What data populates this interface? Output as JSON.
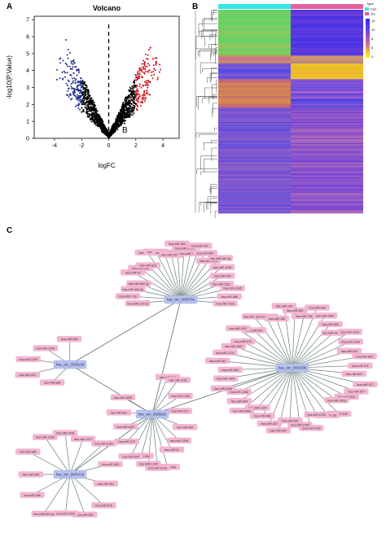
{
  "panel_labels": {
    "a": "A",
    "b": "B",
    "c": "C"
  },
  "chart_data": [
    {
      "type": "scatter",
      "title": "Volcano",
      "xlabel": "logFC",
      "ylabel": "-log10(P.Value)",
      "xlim": [
        -5.5,
        5.2
      ],
      "ylim": [
        0,
        7.2
      ],
      "xticks": [
        -4,
        -2,
        0,
        2,
        4
      ],
      "yticks": [
        0,
        1,
        2,
        3,
        4,
        5,
        6,
        7
      ],
      "threshold_lines": {
        "x": 0,
        "style": "dashed"
      },
      "annotation": "B",
      "series": [
        {
          "color": "#000000",
          "shape": "v-cloud",
          "x_range": [
            -2,
            2
          ]
        },
        {
          "color": "#1f2f8f",
          "shape": "v-cloud",
          "x_range": [
            -4.6,
            -2
          ]
        },
        {
          "color": "#d0101a",
          "shape": "v-cloud",
          "x_range": [
            2,
            4.6
          ]
        }
      ]
    },
    {
      "type": "heatmap",
      "legend": {
        "title": "Type",
        "labels": [
          "Con",
          "Tre"
        ],
        "scale_labels": [
          "12",
          "10",
          "8",
          "6",
          "4"
        ],
        "colors": [
          "#33e6e6",
          "#e55f9d"
        ]
      },
      "column_groups": [
        {
          "color": "#33e6e6"
        },
        {
          "color": "#e55f9d"
        }
      ],
      "colorscale": [
        "#ffff00",
        "#e8a030",
        "#c05ad0",
        "#5a3fdd",
        "#2a2df0"
      ]
    }
  ],
  "network": {
    "hubs": [
      {
        "id": "h1",
        "label": "hsa_circ_0002762"
      },
      {
        "id": "h2",
        "label": "hsa_circ_0005168"
      },
      {
        "id": "h3",
        "label": "hsa_circ_0001009"
      },
      {
        "id": "h4",
        "label": "hsa_circ_0005602"
      },
      {
        "id": "h5",
        "label": "hsa_circ_0001419"
      }
    ],
    "mirnas_h1": [
      "hsa-miR-143-3p",
      "hsa-miR-7-5p",
      "hsa-miR-454-3p",
      "hsa-miR-582-5p",
      "hsa-miR-93",
      "hsa-miR-556",
      "hsa-miR-623",
      "hsa-miR-320",
      "hsa-miR-370",
      "hsa-miR-337",
      "hsa-miR-767-5p",
      "hsa-miR-361",
      "hsa-miR-1208",
      "hsa-miR-338-5p",
      "hsa-miR-433",
      "hsa-miR-559",
      "hsa-miR-1303",
      "hsa-miR-590-3p",
      "hsa-miR-1238",
      "hsa-miR-499",
      "hsa-miR-1261",
      "hsa-miR-1185",
      "hsa-miR-888",
      "hsa-miR-1183"
    ],
    "mirnas_h2": [
      "hsa-miR-888",
      "hsa-miR-431",
      "hsa-miR-1293",
      "hsa-miR-1246",
      "hsa-miR-556"
    ],
    "mirnas_h3": [
      "hsa-miR-599",
      "hsa-miR-576-5p",
      "hsa-miR-127-5p",
      "hsa-miR-185",
      "hsa-miR-144",
      "hsa-miR-583",
      "hsa-miR-766",
      "hsa-miR-564",
      "hsa-miR-1300",
      "hsa-miR-665",
      "hsa-miR-4459-3p",
      "hsa-miR-1234",
      "hsa-miR-1294",
      "hsa-miR-542",
      "hsa-miR-663",
      "hsa-miR-374",
      "hsa-miR-647",
      "hsa-miR-527",
      "hsa-miR-877",
      "hsa-miR-633",
      "hsa-miR-520g",
      "hsa-miR-548",
      "hsa-miR-1-3p",
      "hsa-miR-1203",
      "hsa-miR-1226",
      "hsa-miR-1305",
      "hsa-miR-625",
      "hsa-miR-662",
      "hsa-miR-657",
      "hsa-miR-586",
      "hsa-miR-1324",
      "hsa-miR-548d",
      "hsa-miR-608",
      "hsa-miR-1268",
      "hsa-miR-548k",
      "hsa-miR-1304",
      "hsa-miR-563",
      "hsa-miR-543",
      "hsa-miR-1224",
      "hsa-miR-1587",
      "hsa-miR-579",
      "hsa-miR-1827"
    ],
    "mirnas_h4": [
      "hsa-miR-604",
      "hsa-miR-1182",
      "hsa-miR-1250",
      "hsa-miR-573",
      "hsa-miR-566",
      "hsa-miR-1298",
      "hsa-miR-3c",
      "hsa-miR-595",
      "hsa-miR-5239",
      "hsa-miR-1294",
      "hsa-miR-630",
      "hsa-miR-549",
      "hsa-miR-570",
      "hsa-miR-1827",
      "hsa-miR-632",
      "hsa-miR-1825"
    ],
    "mirnas_h5": [
      "hsa-miR-551",
      "hsa-miR-576",
      "hsa-miR-942",
      "hsa-miR-1253",
      "hsa-miR-515-5p",
      "hsa-miR-556",
      "hsa-miR-345",
      "hsa-miR-885",
      "hsa-miR-1324",
      "hsa-miR-1208",
      "hsa-miR-1227",
      "hsa-miR-1284",
      "hsa-miR-625"
    ]
  }
}
